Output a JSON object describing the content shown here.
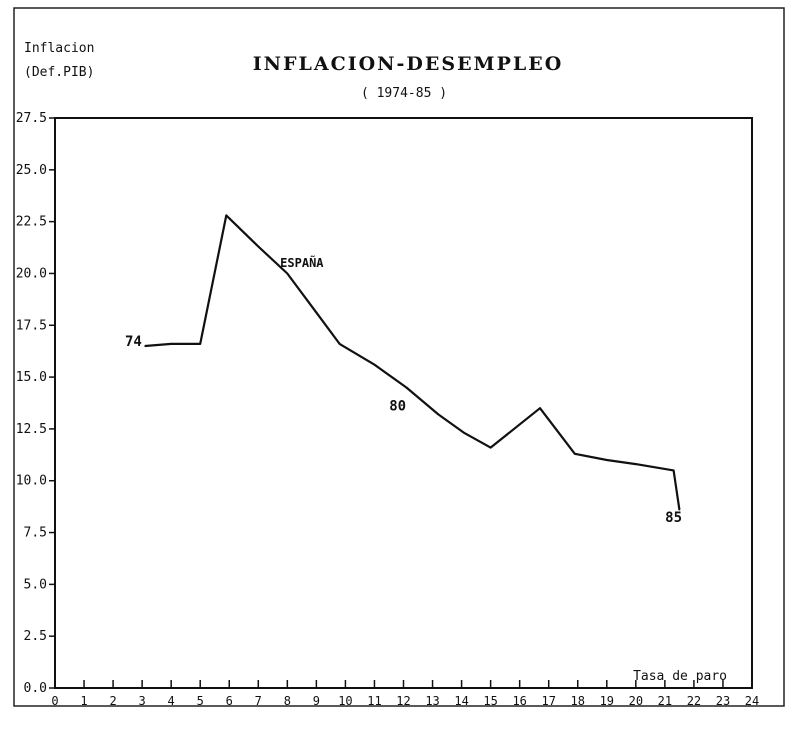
{
  "chart_data": {
    "type": "line",
    "title": "INFLACION-DESEMPLEO",
    "subtitle": "( 1974-85 )",
    "ylabel": [
      "Inflacion",
      "(Def.PIB)"
    ],
    "xlabel": "Tasa de paro",
    "xlim": [
      0,
      24
    ],
    "ylim": [
      0,
      27.5
    ],
    "x_ticks": [
      "0",
      "1",
      "2",
      "3",
      "4",
      "5",
      "6",
      "7",
      "8",
      "9",
      "10",
      "11",
      "12",
      "13",
      "14",
      "15",
      "16",
      "17",
      "18",
      "19",
      "20",
      "21",
      "22",
      "23",
      "24"
    ],
    "y_ticks": [
      "0.0",
      "2.5",
      "5.0",
      "7.5",
      "10.0",
      "12.5",
      "15.0",
      "17.5",
      "20.0",
      "22.5",
      "25.0",
      "27.5"
    ],
    "series": [
      {
        "name": "ESPAÑA",
        "x": [
          3.1,
          4.0,
          5.0,
          5.9,
          7.0,
          8.0,
          8.9,
          9.8,
          11.0,
          12.1,
          13.2,
          14.1,
          15.0,
          16.7,
          17.9,
          19.0,
          20.0,
          21.3,
          21.5
        ],
        "y": [
          16.5,
          16.6,
          16.6,
          22.8,
          21.3,
          20.0,
          18.3,
          16.6,
          15.6,
          14.5,
          13.2,
          12.3,
          11.6,
          13.5,
          11.3,
          11.0,
          10.8,
          10.5,
          8.6
        ]
      }
    ],
    "annotations": [
      {
        "text": "74",
        "x": 2.7,
        "y": 16.5
      },
      {
        "text": "80",
        "x": 11.8,
        "y": 13.4
      },
      {
        "text": "85",
        "x": 21.3,
        "y": 8.0
      },
      {
        "text": "ESPAÑA",
        "x": 8.5,
        "y": 20.3
      }
    ],
    "grid": false
  }
}
